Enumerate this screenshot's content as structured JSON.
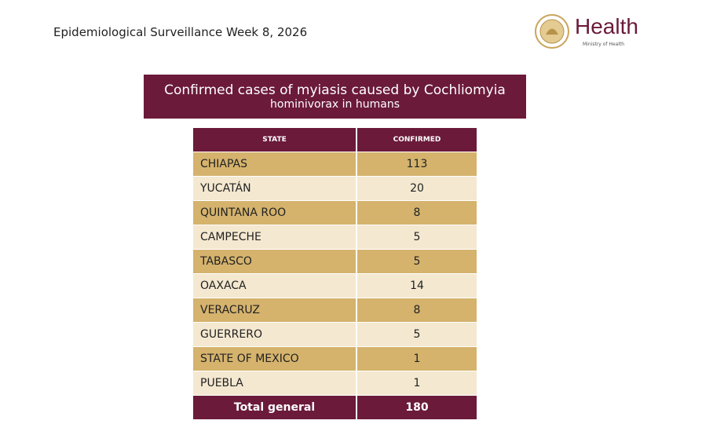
{
  "header": {
    "title": "Epidemiological Surveillance Week 8, 2026",
    "brand": "Health",
    "ministry": "Ministry of Health"
  },
  "banner": {
    "line1": "Confirmed cases of myiasis caused by Cochliomyia",
    "line2": "hominivorax in humans"
  },
  "table": {
    "columns": [
      "STATE",
      "CONFIRMED"
    ],
    "rows": [
      [
        "CHIAPAS",
        113
      ],
      [
        "YUCATÁN",
        20
      ],
      [
        "QUINTANA ROO",
        8
      ],
      [
        "CAMPECHE",
        5
      ],
      [
        "TABASCO",
        5
      ],
      [
        "OAXACA",
        14
      ],
      [
        "VERACRUZ",
        8
      ],
      [
        "GUERRERO",
        5
      ],
      [
        "STATE OF MEXICO",
        1
      ],
      [
        "PUEBLA",
        1
      ]
    ],
    "total": [
      "Total general",
      180
    ]
  }
}
